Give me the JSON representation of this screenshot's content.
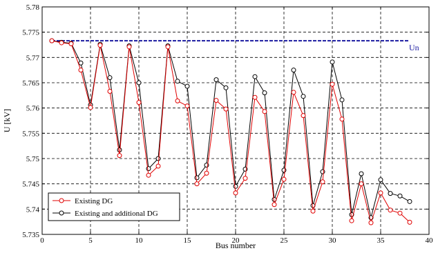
{
  "chart_data": {
    "type": "line",
    "title": "",
    "xlabel": "Bus number",
    "ylabel": "U [kV]",
    "xlim": [
      0,
      40
    ],
    "ylim": [
      5.735,
      5.78
    ],
    "xticks": [
      0,
      5,
      10,
      15,
      20,
      25,
      30,
      35,
      40
    ],
    "yticks": [
      5.735,
      5.74,
      5.745,
      5.75,
      5.755,
      5.76,
      5.765,
      5.77,
      5.775,
      5.78
    ],
    "xtick_labels": [
      "0",
      "5",
      "10",
      "15",
      "20",
      "25",
      "30",
      "35",
      "40"
    ],
    "ytick_labels": [
      "5.735",
      "5.74",
      "5.745",
      "5.75",
      "5.755",
      "5.76",
      "5.765",
      "5.77",
      "5.775",
      "5.78"
    ],
    "grid": true,
    "legend_position": "bottom-left",
    "series": [
      {
        "name": "Existing DG",
        "color": "#e00000",
        "marker": "circle",
        "x": [
          1,
          2,
          3,
          4,
          5,
          6,
          7,
          8,
          9,
          10,
          11,
          12,
          13,
          14,
          15,
          16,
          17,
          18,
          19,
          20,
          21,
          22,
          23,
          24,
          25,
          26,
          27,
          28,
          29,
          30,
          31,
          32,
          33,
          34,
          35,
          36,
          37,
          38
        ],
        "y": [
          5.7733,
          5.7729,
          5.7727,
          5.7675,
          5.7601,
          5.7724,
          5.7633,
          5.7506,
          5.7721,
          5.7611,
          5.7467,
          5.7485,
          5.7721,
          5.7614,
          5.7604,
          5.745,
          5.7471,
          5.7615,
          5.7598,
          5.7432,
          5.7461,
          5.7621,
          5.7593,
          5.7409,
          5.7459,
          5.7631,
          5.7585,
          5.7396,
          5.7454,
          5.7647,
          5.7578,
          5.7377,
          5.745,
          5.7373,
          5.7432,
          5.7398,
          5.7392,
          5.7374
        ]
      },
      {
        "name": "Existing and additional DG",
        "color": "#000000",
        "marker": "circle",
        "x": [
          1,
          2,
          3,
          4,
          5,
          6,
          7,
          8,
          9,
          10,
          11,
          12,
          13,
          14,
          15,
          16,
          17,
          18,
          19,
          20,
          21,
          22,
          23,
          24,
          25,
          26,
          27,
          28,
          29,
          30,
          31,
          32,
          33,
          34,
          35,
          36,
          37,
          38
        ],
        "y": [
          5.7733,
          5.773,
          5.7728,
          5.7689,
          5.7606,
          5.7726,
          5.766,
          5.7517,
          5.7723,
          5.765,
          5.748,
          5.75,
          5.7723,
          5.7653,
          5.7643,
          5.7462,
          5.7487,
          5.7656,
          5.764,
          5.7445,
          5.7479,
          5.7662,
          5.763,
          5.7419,
          5.7477,
          5.7675,
          5.7623,
          5.7407,
          5.7474,
          5.7691,
          5.7616,
          5.7389,
          5.747,
          5.7383,
          5.7458,
          5.7431,
          5.7426,
          5.7415
        ]
      }
    ],
    "reference_line": {
      "label": "Un",
      "value": 5.7733,
      "x_range": [
        1,
        38
      ],
      "color": "#1a1aa0"
    }
  }
}
